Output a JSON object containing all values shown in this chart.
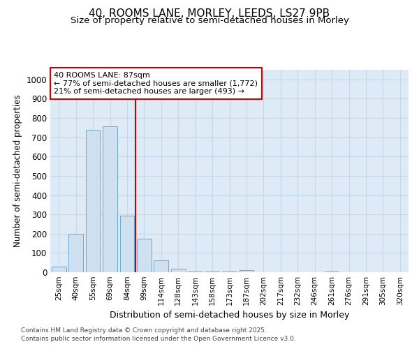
{
  "title_line1": "40, ROOMS LANE, MORLEY, LEEDS, LS27 9PB",
  "title_line2": "Size of property relative to semi-detached houses in Morley",
  "xlabel": "Distribution of semi-detached houses by size in Morley",
  "ylabel": "Number of semi-detached properties",
  "categories": [
    "25sqm",
    "40sqm",
    "55sqm",
    "69sqm",
    "84sqm",
    "99sqm",
    "114sqm",
    "128sqm",
    "143sqm",
    "158sqm",
    "173sqm",
    "187sqm",
    "202sqm",
    "217sqm",
    "232sqm",
    "246sqm",
    "261sqm",
    "276sqm",
    "291sqm",
    "305sqm",
    "320sqm"
  ],
  "values": [
    28,
    200,
    740,
    755,
    295,
    175,
    63,
    18,
    5,
    5,
    4,
    10,
    0,
    0,
    0,
    0,
    3,
    0,
    0,
    0,
    0
  ],
  "bar_color": "#cfe0f0",
  "bar_edge_color": "#6aaad4",
  "grid_color": "#c5d8eb",
  "annotation_line_color": "#cc0000",
  "annotation_text_line1": "40 ROOMS LANE: 87sqm",
  "annotation_text_line2": "← 77% of semi-detached houses are smaller (1,772)",
  "annotation_text_line3": "21% of semi-detached houses are larger (493) →",
  "annotation_box_color": "#cc0000",
  "ylim": [
    0,
    1050
  ],
  "yticks": [
    0,
    100,
    200,
    300,
    400,
    500,
    600,
    700,
    800,
    900,
    1000
  ],
  "footnote_line1": "Contains HM Land Registry data © Crown copyright and database right 2025.",
  "footnote_line2": "Contains public sector information licensed under the Open Government Licence v3.0.",
  "fig_bg_color": "#ffffff",
  "plot_bg_color": "#deeaf5"
}
